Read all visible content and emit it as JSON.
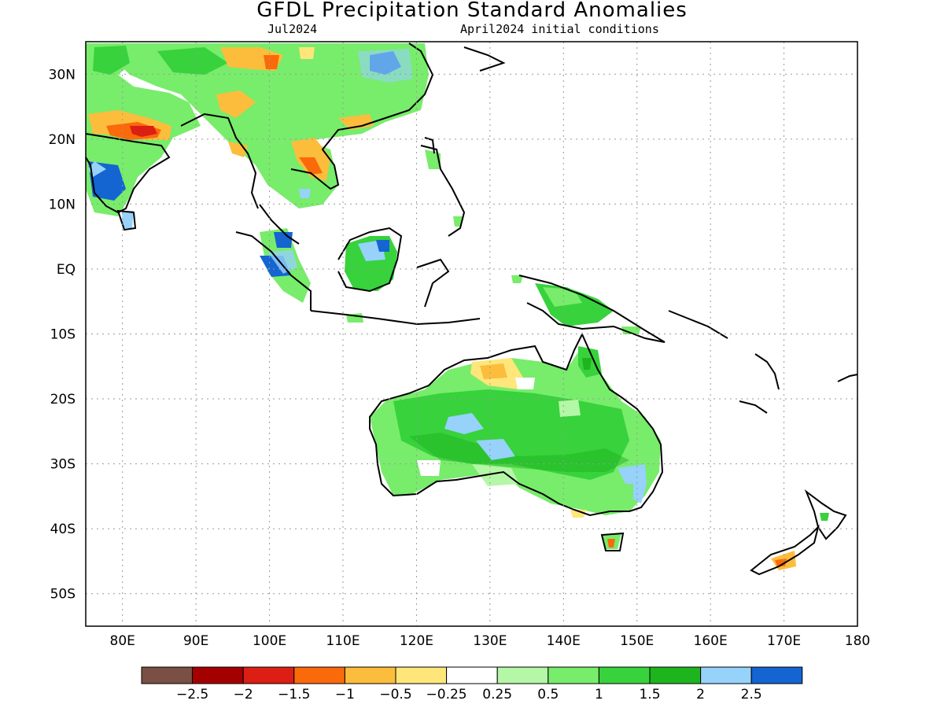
{
  "title": "GFDL Precipitation Standard Anomalies",
  "subtitle_left": "Jul2024",
  "subtitle_right": "April2024 initial conditions",
  "map": {
    "lon_range": [
      75,
      180
    ],
    "lat_range": [
      -55,
      35
    ],
    "x_tick_labels": [
      "80E",
      "90E",
      "100E",
      "110E",
      "120E",
      "130E",
      "140E",
      "150E",
      "160E",
      "170E",
      "180"
    ],
    "y_tick_labels": [
      "30N",
      "20N",
      "10N",
      "EQ",
      "10S",
      "20S",
      "30S",
      "40S",
      "50S"
    ],
    "grid": "dotted"
  },
  "legend": {
    "colors": [
      "#7a4f44",
      "#a50000",
      "#dc1e14",
      "#fa6a0a",
      "#fdbd3c",
      "#fee67a",
      "#ffffff",
      "#b4f7a6",
      "#78ec6b",
      "#37d23c",
      "#1eb41e",
      "#96d2fa",
      "#1464d2"
    ],
    "labels": [
      "−2.5",
      "−2",
      "−1.5",
      "−1",
      "−0.5",
      "−0.25",
      "0.25",
      "0.5",
      "1",
      "1.5",
      "2",
      "2.5"
    ]
  }
}
